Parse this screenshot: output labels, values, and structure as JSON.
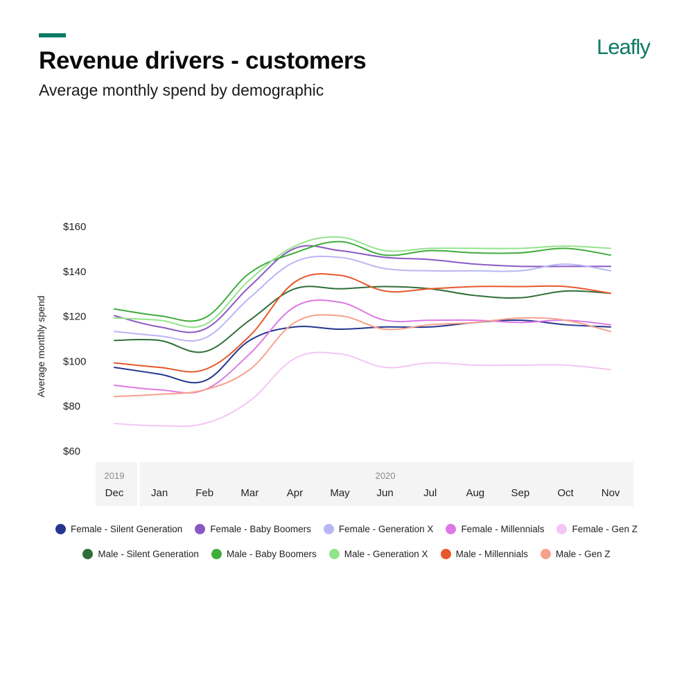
{
  "header": {
    "title": "Revenue drivers - customers",
    "subtitle": "Average monthly spend by demographic",
    "logo_text": "Leafly",
    "logo_mark": ".",
    "brand_color": "#0b7a64"
  },
  "chart_data": {
    "type": "line",
    "title": "Revenue drivers - customers",
    "subtitle": "Average monthly spend by demographic",
    "xlabel": "",
    "ylabel": "Average monthly spend",
    "ylim": [
      60,
      160
    ],
    "yticks": [
      60,
      80,
      100,
      120,
      140,
      160
    ],
    "ytick_labels": [
      "$60",
      "$80",
      "$100",
      "$120",
      "$140",
      "$160"
    ],
    "grid": false,
    "legend_position": "bottom",
    "x_groups": [
      {
        "year": "2019",
        "months": [
          "Dec"
        ]
      },
      {
        "year": "2020",
        "months": [
          "Jan",
          "Feb",
          "Mar",
          "Apr",
          "May",
          "Jun",
          "Jul",
          "Aug",
          "Sep",
          "Oct",
          "Nov"
        ]
      }
    ],
    "categories": [
      "Dec",
      "Jan",
      "Feb",
      "Mar",
      "Apr",
      "May",
      "Jun",
      "Jul",
      "Aug",
      "Sep",
      "Oct",
      "Nov"
    ],
    "series": [
      {
        "name": "Female - Silent Generation",
        "color": "#25358f",
        "values": [
          97,
          94,
          91,
          109,
          115,
          114,
          115,
          115,
          117,
          118,
          116,
          115
        ]
      },
      {
        "name": "Female - Baby Boomers",
        "color": "#8b57c4",
        "values": [
          120,
          115,
          114,
          133,
          150,
          149,
          146,
          145,
          143,
          142,
          142,
          142
        ]
      },
      {
        "name": "Female - Generation X",
        "color": "#b9b6f5",
        "values": [
          113,
          111,
          110,
          128,
          144,
          146,
          141,
          140,
          140,
          140,
          143,
          140
        ]
      },
      {
        "name": "Female - Millennials",
        "color": "#dc79e4",
        "values": [
          89,
          87,
          87,
          103,
          124,
          126,
          118,
          118,
          118,
          117,
          118,
          116
        ]
      },
      {
        "name": "Female - Gen Z",
        "color": "#f3c6f4",
        "values": [
          72,
          71,
          72,
          82,
          101,
          103,
          97,
          99,
          98,
          98,
          98,
          96
        ]
      },
      {
        "name": "Male - Silent Generation",
        "color": "#2f6e38",
        "values": [
          109,
          109,
          104,
          118,
          132,
          132,
          133,
          132,
          129,
          128,
          131,
          130
        ]
      },
      {
        "name": "Male - Baby Boomers",
        "color": "#3fac3b",
        "values": [
          123,
          120,
          119,
          139,
          148,
          153,
          147,
          149,
          148,
          148,
          150,
          147
        ]
      },
      {
        "name": "Male - Generation X",
        "color": "#92e48a",
        "values": [
          119,
          118,
          116,
          136,
          151,
          155,
          149,
          150,
          150,
          150,
          151,
          150
        ]
      },
      {
        "name": "Male - Millennials",
        "color": "#e8572a",
        "values": [
          99,
          97,
          96,
          111,
          135,
          138,
          131,
          132,
          133,
          133,
          133,
          130
        ]
      },
      {
        "name": "Male - Gen Z",
        "color": "#f7a18b",
        "values": [
          84,
          85,
          87,
          96,
          117,
          120,
          114,
          116,
          117,
          119,
          118,
          113
        ]
      }
    ]
  },
  "legend": {
    "rows": [
      [
        0,
        1,
        2,
        3,
        4
      ],
      [
        5,
        6,
        7,
        8,
        9
      ]
    ]
  }
}
